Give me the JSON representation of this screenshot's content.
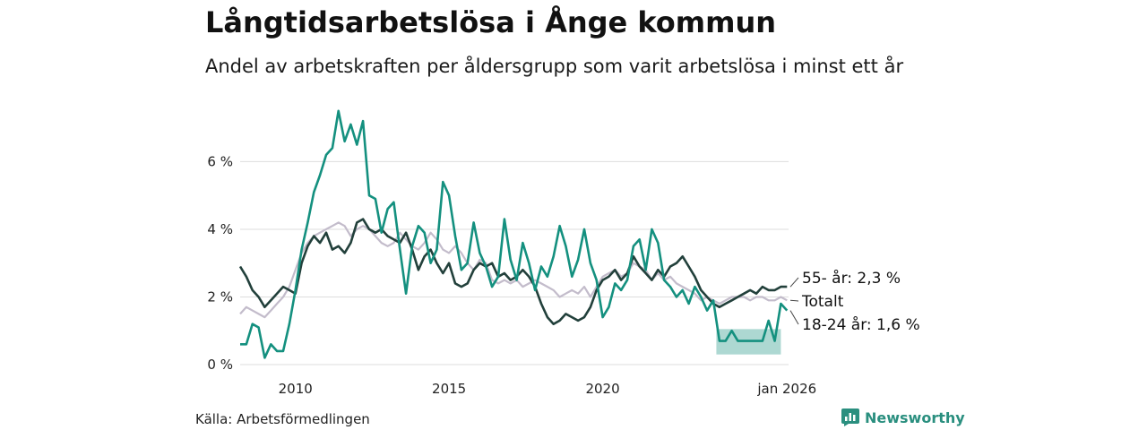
{
  "header": {
    "title": "Långtidsarbetslösa i Ånge kommun",
    "subtitle": "Andel av arbetskraften per åldersgrupp som varit arbetslösa i minst ett år"
  },
  "footer": {
    "source": "Källa: Arbetsförmedlingen",
    "brand": "Newsworthy"
  },
  "colors": {
    "youth": "#14907f",
    "older": "#22403b",
    "total": "#c3bccb",
    "grid": "#dddddd",
    "brand": "#2a8f7f"
  },
  "chart_data": {
    "type": "line",
    "title": "Långtidsarbetslösa i Ånge kommun",
    "xlabel": "",
    "ylabel": "",
    "x_range": [
      2008.2,
      2026.05
    ],
    "ylim": [
      0,
      7.6
    ],
    "y_ticks": [
      0,
      2,
      4,
      6
    ],
    "y_tick_labels": [
      "0 %",
      "2 %",
      "4 %",
      "6 %"
    ],
    "x_ticks": [
      2010,
      2015,
      2020,
      2026.0
    ],
    "x_tick_labels": [
      "2010",
      "2015",
      "2020",
      "jan 2026"
    ],
    "grid": true,
    "legend": "end-labels",
    "end_labels": {
      "older": "55- år: 2,3 %",
      "total": "Totalt",
      "youth": "18-24 år: 1,6 %"
    },
    "uncertainty_band": {
      "series": "18-24 år",
      "x": [
        2023.7,
        2025.8
      ],
      "low": 0.3,
      "high": 1.05
    },
    "series": [
      {
        "name": "Totalt",
        "key": "total",
        "points": [
          [
            2008.2,
            1.5
          ],
          [
            2008.4,
            1.7
          ],
          [
            2008.6,
            1.6
          ],
          [
            2008.8,
            1.5
          ],
          [
            2009.0,
            1.4
          ],
          [
            2009.2,
            1.6
          ],
          [
            2009.4,
            1.8
          ],
          [
            2009.6,
            2.0
          ],
          [
            2009.8,
            2.3
          ],
          [
            2010.0,
            2.8
          ],
          [
            2010.2,
            3.3
          ],
          [
            2010.4,
            3.6
          ],
          [
            2010.6,
            3.8
          ],
          [
            2010.8,
            3.9
          ],
          [
            2011.0,
            4.0
          ],
          [
            2011.2,
            4.1
          ],
          [
            2011.4,
            4.2
          ],
          [
            2011.6,
            4.1
          ],
          [
            2011.8,
            3.8
          ],
          [
            2012.0,
            4.0
          ],
          [
            2012.2,
            4.1
          ],
          [
            2012.4,
            4.0
          ],
          [
            2012.6,
            3.8
          ],
          [
            2012.8,
            3.6
          ],
          [
            2013.0,
            3.5
          ],
          [
            2013.2,
            3.6
          ],
          [
            2013.4,
            3.9
          ],
          [
            2013.6,
            3.7
          ],
          [
            2013.8,
            3.5
          ],
          [
            2014.0,
            3.4
          ],
          [
            2014.2,
            3.6
          ],
          [
            2014.4,
            3.9
          ],
          [
            2014.6,
            3.7
          ],
          [
            2014.8,
            3.4
          ],
          [
            2015.0,
            3.3
          ],
          [
            2015.2,
            3.5
          ],
          [
            2015.4,
            3.3
          ],
          [
            2015.6,
            3.0
          ],
          [
            2015.8,
            2.8
          ],
          [
            2016.0,
            3.1
          ],
          [
            2016.2,
            3.0
          ],
          [
            2016.4,
            2.5
          ],
          [
            2016.6,
            2.4
          ],
          [
            2016.8,
            2.5
          ],
          [
            2017.0,
            2.4
          ],
          [
            2017.2,
            2.5
          ],
          [
            2017.4,
            2.3
          ],
          [
            2017.6,
            2.4
          ],
          [
            2017.8,
            2.5
          ],
          [
            2018.0,
            2.4
          ],
          [
            2018.2,
            2.3
          ],
          [
            2018.4,
            2.2
          ],
          [
            2018.6,
            2.0
          ],
          [
            2018.8,
            2.1
          ],
          [
            2019.0,
            2.2
          ],
          [
            2019.2,
            2.1
          ],
          [
            2019.4,
            2.3
          ],
          [
            2019.6,
            2.0
          ],
          [
            2019.8,
            2.3
          ],
          [
            2020.0,
            2.6
          ],
          [
            2020.2,
            2.7
          ],
          [
            2020.4,
            2.8
          ],
          [
            2020.6,
            2.6
          ],
          [
            2020.8,
            2.7
          ],
          [
            2021.0,
            3.0
          ],
          [
            2021.2,
            2.9
          ],
          [
            2021.4,
            2.8
          ],
          [
            2021.6,
            2.5
          ],
          [
            2021.8,
            2.7
          ],
          [
            2022.0,
            2.5
          ],
          [
            2022.2,
            2.6
          ],
          [
            2022.4,
            2.4
          ],
          [
            2022.6,
            2.3
          ],
          [
            2022.8,
            2.2
          ],
          [
            2023.0,
            2.1
          ],
          [
            2023.2,
            1.9
          ],
          [
            2023.4,
            2.0
          ],
          [
            2023.6,
            1.9
          ],
          [
            2023.8,
            1.8
          ],
          [
            2024.0,
            1.9
          ],
          [
            2024.2,
            2.0
          ],
          [
            2024.4,
            2.0
          ],
          [
            2024.6,
            2.0
          ],
          [
            2024.8,
            1.9
          ],
          [
            2025.0,
            2.0
          ],
          [
            2025.2,
            2.0
          ],
          [
            2025.4,
            1.9
          ],
          [
            2025.6,
            1.9
          ],
          [
            2025.8,
            2.0
          ],
          [
            2026.0,
            1.9
          ]
        ]
      },
      {
        "name": "55- år",
        "key": "older",
        "points": [
          [
            2008.2,
            2.9
          ],
          [
            2008.4,
            2.6
          ],
          [
            2008.6,
            2.2
          ],
          [
            2008.8,
            2.0
          ],
          [
            2009.0,
            1.7
          ],
          [
            2009.2,
            1.9
          ],
          [
            2009.4,
            2.1
          ],
          [
            2009.6,
            2.3
          ],
          [
            2009.8,
            2.2
          ],
          [
            2010.0,
            2.1
          ],
          [
            2010.2,
            3.0
          ],
          [
            2010.4,
            3.5
          ],
          [
            2010.6,
            3.8
          ],
          [
            2010.8,
            3.6
          ],
          [
            2011.0,
            3.9
          ],
          [
            2011.2,
            3.4
          ],
          [
            2011.4,
            3.5
          ],
          [
            2011.6,
            3.3
          ],
          [
            2011.8,
            3.6
          ],
          [
            2012.0,
            4.2
          ],
          [
            2012.2,
            4.3
          ],
          [
            2012.4,
            4.0
          ],
          [
            2012.6,
            3.9
          ],
          [
            2012.8,
            4.0
          ],
          [
            2013.0,
            3.8
          ],
          [
            2013.2,
            3.7
          ],
          [
            2013.4,
            3.6
          ],
          [
            2013.6,
            3.9
          ],
          [
            2013.8,
            3.4
          ],
          [
            2014.0,
            2.8
          ],
          [
            2014.2,
            3.2
          ],
          [
            2014.4,
            3.4
          ],
          [
            2014.6,
            3.0
          ],
          [
            2014.8,
            2.7
          ],
          [
            2015.0,
            3.0
          ],
          [
            2015.2,
            2.4
          ],
          [
            2015.4,
            2.3
          ],
          [
            2015.6,
            2.4
          ],
          [
            2015.8,
            2.8
          ],
          [
            2016.0,
            3.0
          ],
          [
            2016.2,
            2.9
          ],
          [
            2016.4,
            3.0
          ],
          [
            2016.6,
            2.6
          ],
          [
            2016.8,
            2.7
          ],
          [
            2017.0,
            2.5
          ],
          [
            2017.2,
            2.6
          ],
          [
            2017.4,
            2.8
          ],
          [
            2017.6,
            2.6
          ],
          [
            2017.8,
            2.3
          ],
          [
            2018.0,
            1.8
          ],
          [
            2018.2,
            1.4
          ],
          [
            2018.4,
            1.2
          ],
          [
            2018.6,
            1.3
          ],
          [
            2018.8,
            1.5
          ],
          [
            2019.0,
            1.4
          ],
          [
            2019.2,
            1.3
          ],
          [
            2019.4,
            1.4
          ],
          [
            2019.6,
            1.7
          ],
          [
            2019.8,
            2.2
          ],
          [
            2020.0,
            2.5
          ],
          [
            2020.2,
            2.6
          ],
          [
            2020.4,
            2.8
          ],
          [
            2020.6,
            2.5
          ],
          [
            2020.8,
            2.7
          ],
          [
            2021.0,
            3.2
          ],
          [
            2021.2,
            2.9
          ],
          [
            2021.4,
            2.7
          ],
          [
            2021.6,
            2.5
          ],
          [
            2021.8,
            2.8
          ],
          [
            2022.0,
            2.6
          ],
          [
            2022.2,
            2.9
          ],
          [
            2022.4,
            3.0
          ],
          [
            2022.6,
            3.2
          ],
          [
            2022.8,
            2.9
          ],
          [
            2023.0,
            2.6
          ],
          [
            2023.2,
            2.2
          ],
          [
            2023.4,
            2.0
          ],
          [
            2023.6,
            1.8
          ],
          [
            2023.8,
            1.7
          ],
          [
            2024.0,
            1.8
          ],
          [
            2024.2,
            1.9
          ],
          [
            2024.4,
            2.0
          ],
          [
            2024.6,
            2.1
          ],
          [
            2024.8,
            2.2
          ],
          [
            2025.0,
            2.1
          ],
          [
            2025.2,
            2.3
          ],
          [
            2025.4,
            2.2
          ],
          [
            2025.6,
            2.2
          ],
          [
            2025.8,
            2.3
          ],
          [
            2026.0,
            2.3
          ]
        ]
      },
      {
        "name": "18-24 år",
        "key": "youth",
        "points": [
          [
            2008.2,
            0.6
          ],
          [
            2008.4,
            0.6
          ],
          [
            2008.6,
            1.2
          ],
          [
            2008.8,
            1.1
          ],
          [
            2009.0,
            0.2
          ],
          [
            2009.2,
            0.6
          ],
          [
            2009.4,
            0.4
          ],
          [
            2009.6,
            0.4
          ],
          [
            2009.8,
            1.2
          ],
          [
            2010.0,
            2.2
          ],
          [
            2010.2,
            3.4
          ],
          [
            2010.4,
            4.2
          ],
          [
            2010.6,
            5.1
          ],
          [
            2010.8,
            5.6
          ],
          [
            2011.0,
            6.2
          ],
          [
            2011.2,
            6.4
          ],
          [
            2011.4,
            7.5
          ],
          [
            2011.6,
            6.6
          ],
          [
            2011.8,
            7.1
          ],
          [
            2012.0,
            6.5
          ],
          [
            2012.2,
            7.2
          ],
          [
            2012.4,
            5.0
          ],
          [
            2012.6,
            4.9
          ],
          [
            2012.8,
            3.9
          ],
          [
            2013.0,
            4.6
          ],
          [
            2013.2,
            4.8
          ],
          [
            2013.4,
            3.4
          ],
          [
            2013.6,
            2.1
          ],
          [
            2013.8,
            3.5
          ],
          [
            2014.0,
            4.1
          ],
          [
            2014.2,
            3.9
          ],
          [
            2014.4,
            3.0
          ],
          [
            2014.6,
            3.4
          ],
          [
            2014.8,
            5.4
          ],
          [
            2015.0,
            5.0
          ],
          [
            2015.2,
            3.8
          ],
          [
            2015.4,
            2.8
          ],
          [
            2015.6,
            3.0
          ],
          [
            2015.8,
            4.2
          ],
          [
            2016.0,
            3.3
          ],
          [
            2016.2,
            2.9
          ],
          [
            2016.4,
            2.3
          ],
          [
            2016.6,
            2.6
          ],
          [
            2016.8,
            4.3
          ],
          [
            2017.0,
            3.1
          ],
          [
            2017.2,
            2.5
          ],
          [
            2017.4,
            3.6
          ],
          [
            2017.6,
            3.0
          ],
          [
            2017.8,
            2.2
          ],
          [
            2018.0,
            2.9
          ],
          [
            2018.2,
            2.6
          ],
          [
            2018.4,
            3.2
          ],
          [
            2018.6,
            4.1
          ],
          [
            2018.8,
            3.5
          ],
          [
            2019.0,
            2.6
          ],
          [
            2019.2,
            3.1
          ],
          [
            2019.4,
            4.0
          ],
          [
            2019.6,
            3.0
          ],
          [
            2019.8,
            2.5
          ],
          [
            2020.0,
            1.4
          ],
          [
            2020.2,
            1.7
          ],
          [
            2020.4,
            2.4
          ],
          [
            2020.6,
            2.2
          ],
          [
            2020.8,
            2.5
          ],
          [
            2021.0,
            3.5
          ],
          [
            2021.2,
            3.7
          ],
          [
            2021.4,
            2.8
          ],
          [
            2021.6,
            4.0
          ],
          [
            2021.8,
            3.6
          ],
          [
            2022.0,
            2.5
          ],
          [
            2022.2,
            2.3
          ],
          [
            2022.4,
            2.0
          ],
          [
            2022.6,
            2.2
          ],
          [
            2022.8,
            1.8
          ],
          [
            2023.0,
            2.3
          ],
          [
            2023.2,
            2.0
          ],
          [
            2023.4,
            1.6
          ],
          [
            2023.6,
            1.9
          ],
          [
            2023.8,
            0.7
          ],
          [
            2024.0,
            0.7
          ],
          [
            2024.2,
            1.0
          ],
          [
            2024.4,
            0.7
          ],
          [
            2024.6,
            0.7
          ],
          [
            2024.8,
            0.7
          ],
          [
            2025.0,
            0.7
          ],
          [
            2025.2,
            0.7
          ],
          [
            2025.4,
            1.3
          ],
          [
            2025.6,
            0.7
          ],
          [
            2025.8,
            1.8
          ],
          [
            2026.0,
            1.6
          ]
        ]
      }
    ]
  }
}
